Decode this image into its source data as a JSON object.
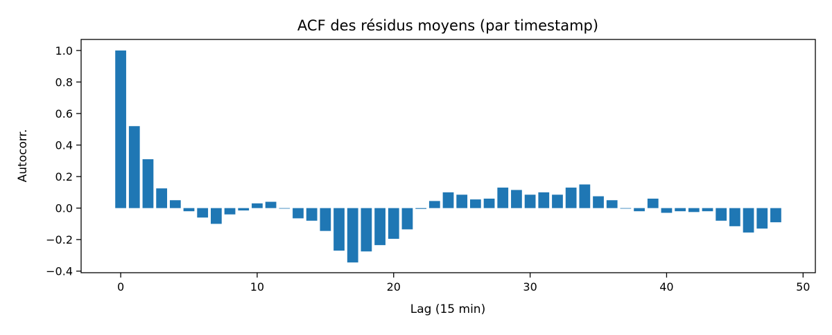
{
  "chart_data": {
    "type": "bar",
    "title": "ACF des résidus moyens (par timestamp)",
    "xlabel": "Lag (15 min)",
    "ylabel": "Autocorr.",
    "xlim": [
      -2.9,
      50.9
    ],
    "ylim": [
      -0.41,
      1.07
    ],
    "xticks": [
      0,
      10,
      20,
      30,
      40,
      50
    ],
    "yticks": [
      -0.4,
      -0.2,
      0.0,
      0.2,
      0.4,
      0.6,
      0.8,
      1.0
    ],
    "grid": false,
    "bar_color": "#1f77b4",
    "series": [
      {
        "x": [
          0,
          1,
          2,
          3,
          4,
          5,
          6,
          7,
          8,
          9,
          10,
          11,
          12,
          13,
          14,
          15,
          16,
          17,
          18,
          19,
          20,
          21,
          22,
          23,
          24,
          25,
          26,
          27,
          28,
          29,
          30,
          31,
          32,
          33,
          34,
          35,
          36,
          37,
          38,
          39,
          40,
          41,
          42,
          43,
          44,
          45,
          46,
          47,
          48
        ],
        "values": [
          1.0,
          0.52,
          0.31,
          0.125,
          0.05,
          -0.02,
          -0.06,
          -0.1,
          -0.04,
          -0.015,
          0.03,
          0.04,
          0.0,
          -0.065,
          -0.08,
          -0.145,
          -0.27,
          -0.345,
          -0.275,
          -0.235,
          -0.195,
          -0.135,
          -0.005,
          0.045,
          0.1,
          0.085,
          0.055,
          0.06,
          0.13,
          0.115,
          0.085,
          0.1,
          0.085,
          0.13,
          0.15,
          0.075,
          0.05,
          0.0,
          -0.02,
          0.06,
          -0.03,
          -0.02,
          -0.025,
          -0.02,
          -0.08,
          -0.115,
          -0.155,
          -0.13,
          -0.09
        ]
      }
    ]
  }
}
